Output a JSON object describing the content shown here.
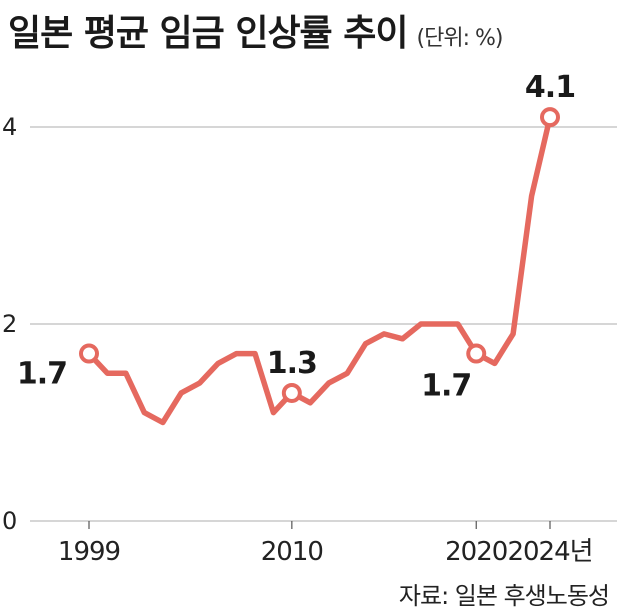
{
  "header": {
    "title": "일본 평균 임금 인상률 추이",
    "unit": "(단위: %)"
  },
  "source": "자료: 일본 후생노동성",
  "colors": {
    "line": "#e5695f",
    "grid": "#bdbdbd",
    "text": "#1a1a1a"
  },
  "chart_data": {
    "type": "line",
    "title": "일본 평균 임금 인상률 추이",
    "unit": "%",
    "ylim": [
      0,
      4.3
    ],
    "y_ticks": [
      "0",
      "2",
      "4"
    ],
    "x_ticks": [
      "1999",
      "2010",
      "2020",
      "2024년"
    ],
    "x_tick_years": [
      1999,
      2010,
      2020,
      2024
    ],
    "grid": true,
    "series": [
      {
        "x": [
          1999,
          2000,
          2001,
          2002,
          2003,
          2004,
          2005,
          2006,
          2007,
          2008,
          2009,
          2010,
          2011,
          2012,
          2013,
          2014,
          2015,
          2016,
          2017,
          2018,
          2019,
          2020,
          2021,
          2022,
          2023,
          2024
        ],
        "values": [
          1.7,
          1.5,
          1.5,
          1.1,
          1.0,
          1.3,
          1.4,
          1.6,
          1.7,
          1.7,
          1.1,
          1.3,
          1.2,
          1.4,
          1.5,
          1.8,
          1.9,
          1.85,
          2.0,
          2.0,
          2.0,
          1.7,
          1.6,
          1.9,
          3.3,
          4.1
        ]
      }
    ],
    "annotations": [
      {
        "x": 1999,
        "y": 1.7,
        "text": "1.7",
        "pos": "left"
      },
      {
        "x": 2010,
        "y": 1.3,
        "text": "1.3",
        "pos": "above"
      },
      {
        "x": 2020,
        "y": 1.7,
        "text": "1.7",
        "pos": "below-left"
      },
      {
        "x": 2024,
        "y": 4.1,
        "text": "4.1",
        "pos": "above"
      }
    ]
  }
}
